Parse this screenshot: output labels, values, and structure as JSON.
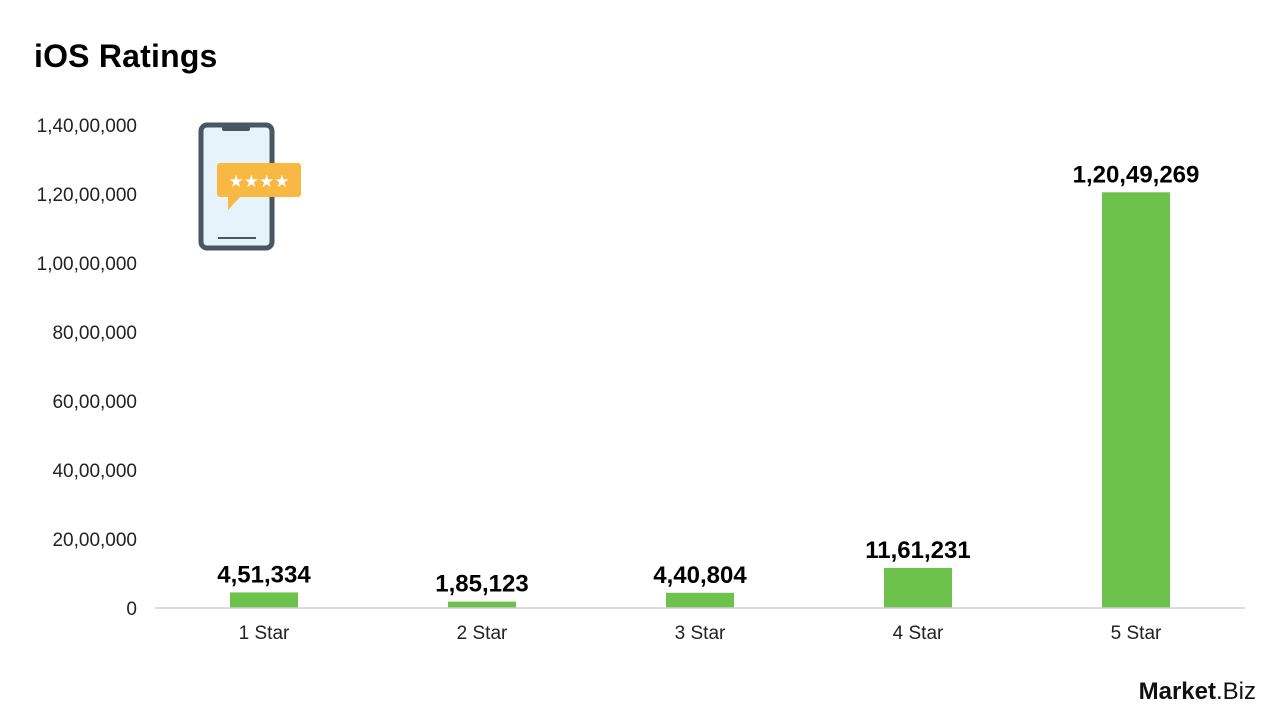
{
  "colors": {
    "bar": "#6cc24a",
    "axis": "#d0d0d0"
  },
  "chart_data": {
    "type": "bar",
    "title": "iOS Ratings",
    "categories": [
      "1 Star",
      "2 Star",
      "3 Star",
      "4 Star",
      "5 Star"
    ],
    "values": [
      451334,
      185123,
      440804,
      1161231,
      12049269
    ],
    "value_labels": [
      "4,51,334",
      "1,85,123",
      "4,40,804",
      "11,61,231",
      "1,20,49,269"
    ],
    "ylim": [
      0,
      14000000
    ],
    "yticks": [
      0,
      2000000,
      4000000,
      6000000,
      8000000,
      10000000,
      12000000,
      14000000
    ],
    "ytick_labels": [
      "0",
      "20,00,000",
      "40,00,000",
      "60,00,000",
      "80,00,000",
      "1,00,00,000",
      "1,20,00,000",
      "1,40,00,000"
    ],
    "grid": false,
    "legend": "none"
  },
  "illustration": {
    "icon": "phone-rating-icon"
  },
  "brand": {
    "name": "Market",
    "suffix": ".Biz"
  }
}
